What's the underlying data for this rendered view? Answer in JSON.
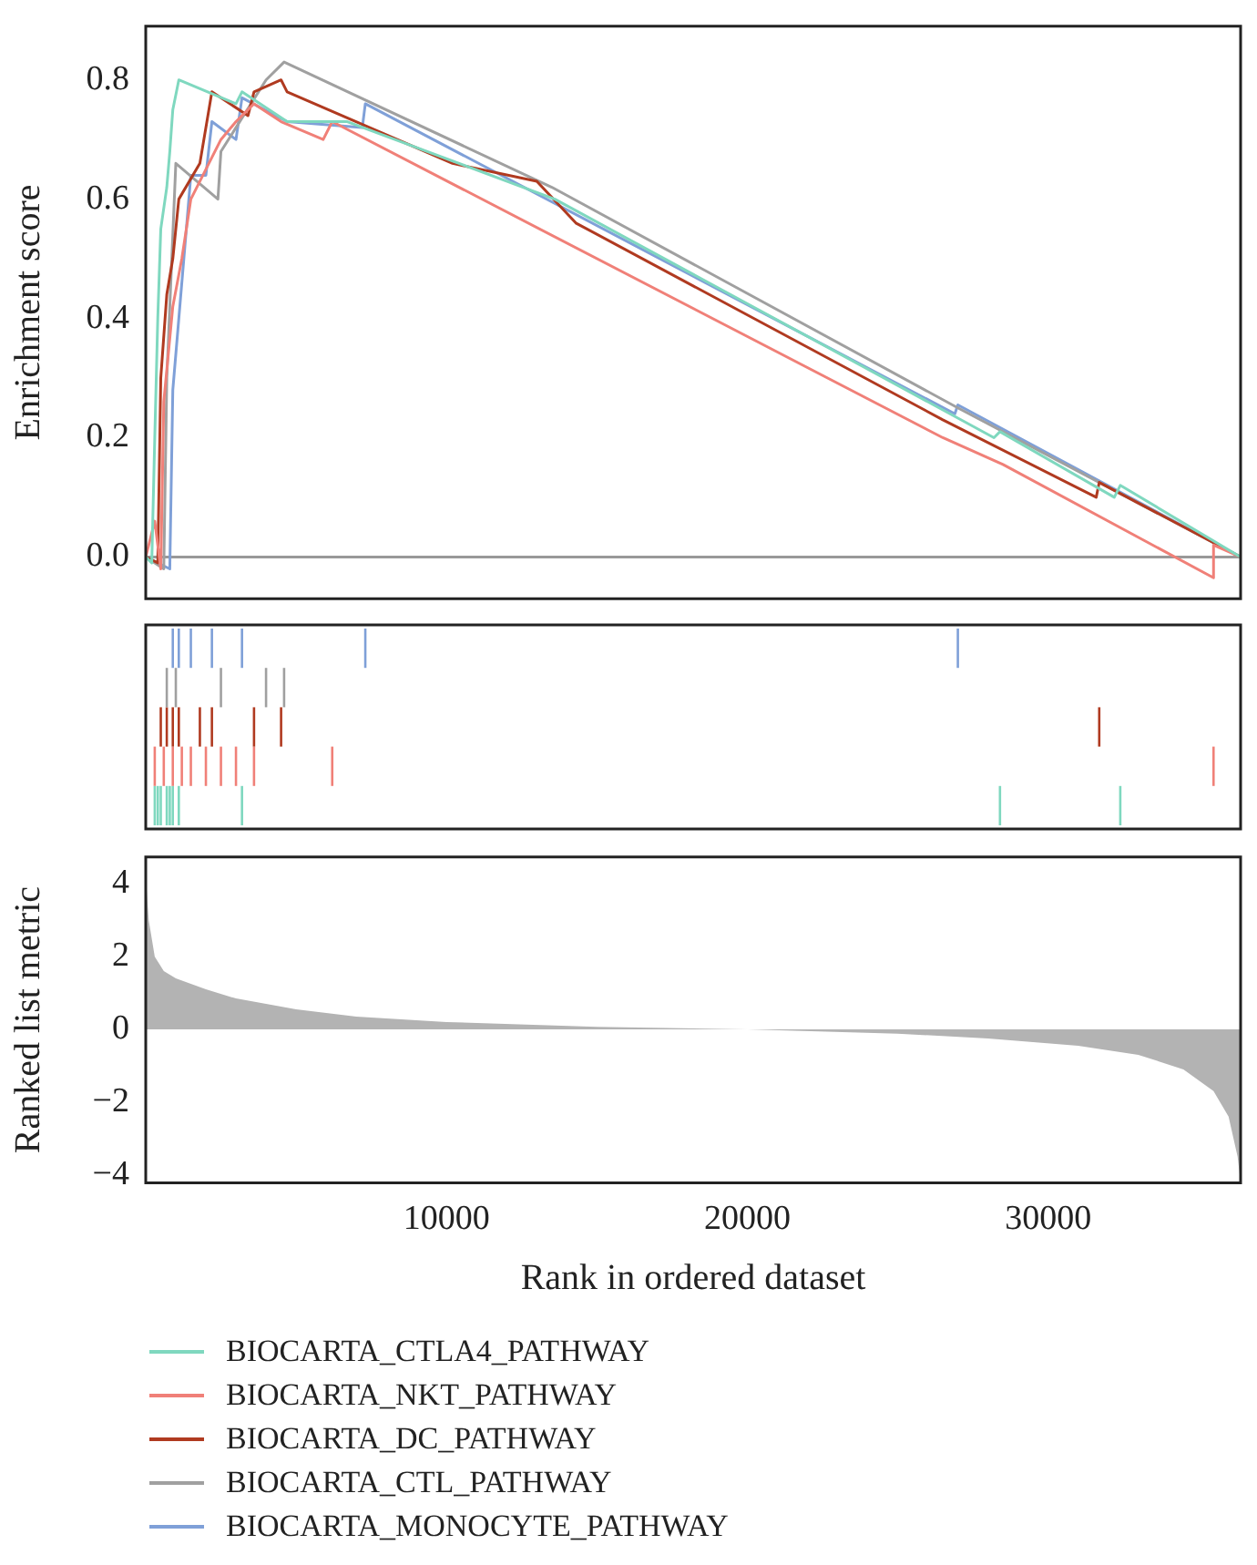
{
  "chart_data": [
    {
      "type": "line",
      "ylabel": "Enrichment score",
      "xlim": [
        0,
        36400
      ],
      "ylim": [
        -0.07,
        0.89
      ],
      "yticks": [
        {
          "value": 0,
          "label": "0.0"
        },
        0.2,
        0.4,
        0.6,
        0.8
      ],
      "tick_labels": "y",
      "marker": "none",
      "legend": "bottom",
      "ref_lines": [
        {
          "axis": "y",
          "value": 0,
          "color": "#999999"
        }
      ],
      "series": [
        {
          "name": "BIOCARTA_CTLA4_PATHWAY",
          "color": "#7fd8bf",
          "x": [
            0,
            200,
            300,
            400,
            500,
            700,
            800,
            900,
            1100,
            3000,
            3200,
            4700,
            6700,
            13600,
            28200,
            28400,
            32200,
            32400,
            36400
          ],
          "values": [
            0,
            -0.01,
            0.2,
            0.4,
            0.55,
            0.62,
            0.68,
            0.75,
            0.8,
            0.76,
            0.78,
            0.73,
            0.73,
            0.6,
            0.2,
            0.21,
            0.1,
            0.12,
            0
          ]
        },
        {
          "name": "BIOCARTA_NKT_PATHWAY",
          "color": "#f08078",
          "x": [
            0,
            300,
            500,
            600,
            900,
            1200,
            1500,
            2000,
            2500,
            3000,
            3600,
            4500,
            5900,
            6200,
            26500,
            28500,
            35500,
            35500,
            36400
          ],
          "values": [
            0,
            0.06,
            -0.02,
            0.26,
            0.42,
            0.5,
            0.6,
            0.65,
            0.7,
            0.73,
            0.76,
            0.73,
            0.7,
            0.73,
            0.2,
            0.155,
            -0.035,
            0.02,
            0
          ]
        },
        {
          "name": "BIOCARTA_DC_PATHWAY",
          "color": "#b03a20",
          "x": [
            0,
            400,
            500,
            700,
            900,
            1100,
            1800,
            2200,
            3400,
            3600,
            4500,
            4700,
            10200,
            13000,
            14300,
            26500,
            31600,
            31700,
            36400
          ],
          "values": [
            0,
            -0.01,
            0.3,
            0.44,
            0.5,
            0.6,
            0.66,
            0.78,
            0.74,
            0.78,
            0.8,
            0.78,
            0.66,
            0.63,
            0.56,
            0.23,
            0.1,
            0.125,
            0
          ]
        },
        {
          "name": "BIOCARTA_CTL_PATHWAY",
          "color": "#a0a0a0",
          "x": [
            0,
            600,
            700,
            1000,
            2400,
            2500,
            4000,
            4600,
            13500,
            27000,
            36400
          ],
          "values": [
            0,
            -0.02,
            0.3,
            0.66,
            0.6,
            0.68,
            0.8,
            0.83,
            0.62,
            0.25,
            0
          ]
        },
        {
          "name": "BIOCARTA_MONOCYTE_PATHWAY",
          "color": "#7fa0d8",
          "x": [
            0,
            800,
            900,
            1100,
            1500,
            2000,
            2200,
            3000,
            3200,
            4700,
            7200,
            7300,
            26900,
            27000,
            36400
          ],
          "values": [
            0,
            -0.02,
            0.28,
            0.4,
            0.64,
            0.64,
            0.73,
            0.7,
            0.77,
            0.73,
            0.72,
            0.76,
            0.24,
            0.255,
            0
          ]
        }
      ]
    },
    {
      "type": "area",
      "xlabel": "Rank in ordered dataset",
      "ylabel": "Ranked list metric",
      "xlim": [
        0,
        36400
      ],
      "ylim": [
        -4.22,
        4.74
      ],
      "xticks": [
        10000,
        20000,
        30000
      ],
      "yticks": [
        -4,
        -2,
        0,
        2,
        4
      ],
      "marker": "none",
      "series": [
        {
          "color": "#b3b3b3",
          "x": [
            0,
            100,
            300,
            600,
            1000,
            2000,
            3000,
            5000,
            7000,
            10000,
            15000,
            20000,
            25000,
            28000,
            31000,
            33000,
            34500,
            35500,
            36000,
            36300,
            36400
          ],
          "values": [
            4.2,
            3.0,
            2.0,
            1.6,
            1.4,
            1.1,
            0.85,
            0.55,
            0.35,
            0.2,
            0.07,
            0,
            -0.12,
            -0.25,
            -0.45,
            -0.7,
            -1.1,
            -1.7,
            -2.4,
            -3.5,
            -4.2
          ]
        }
      ]
    }
  ]
}
